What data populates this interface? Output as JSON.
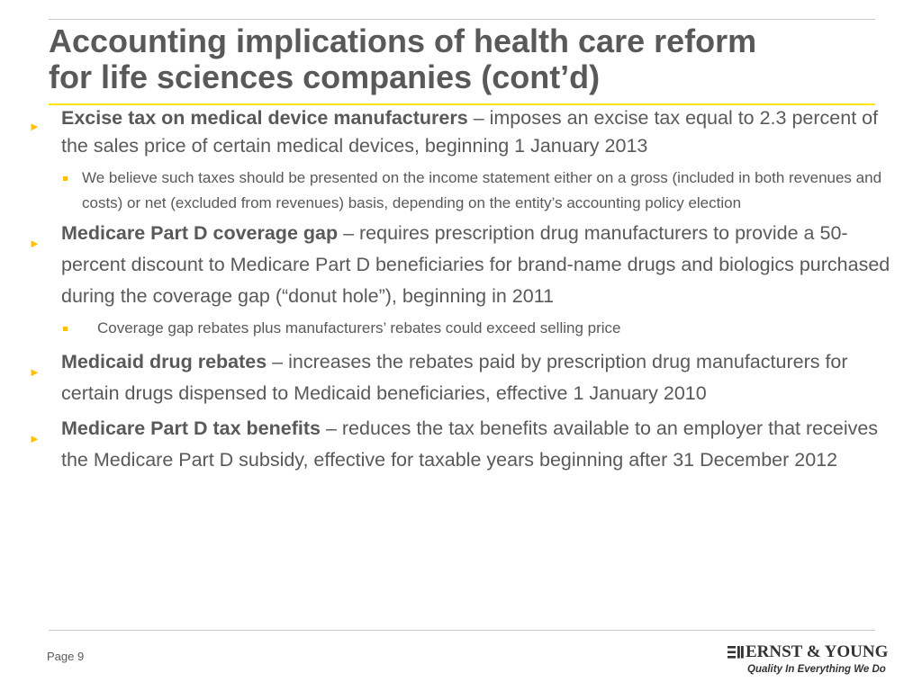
{
  "slide": {
    "title_line1": "Accounting implications of health care reform",
    "title_line2": "for life sciences companies (cont’d)"
  },
  "bullets": [
    {
      "head": "Excise tax on medical device manufacturers",
      "body": " – imposes an excise tax equal to 2.3 percent of the sales price of certain medical devices, beginning 1 January 2013",
      "sub": "We believe such taxes should be presented on the income statement either on a gross (included in both revenues and costs) or net (excluded from revenues) basis, depending on the entity’s accounting policy election"
    },
    {
      "head": "Medicare Part D coverage gap",
      "body": " – requires prescription drug manufacturers to provide a 50-percent discount to Medicare Part D beneficiaries for brand-name drugs and biologics purchased during the coverage gap (“donut hole”), beginning in 2011",
      "sub": "Coverage gap rebates plus manufacturers’ rebates could exceed selling price"
    },
    {
      "head": "Medicaid drug rebates",
      "body": " – increases the rebates paid by prescription drug manufacturers for certain drugs dispensed to Medicaid beneficiaries, effective 1 January 2010"
    },
    {
      "head": "Medicare Part D tax benefits",
      "body": " – reduces the tax benefits available to an employer that receives the Medicare Part D subsidy, effective for taxable years beginning after 31 December 2012"
    }
  ],
  "footer": {
    "page_label": "Page 9",
    "logo_brand": "ERNST & YOUNG",
    "logo_tagline": "Quality In Everything We Do"
  },
  "colors": {
    "accent": "#ffe600",
    "bullet": "#ffc000",
    "text": "#595959"
  }
}
